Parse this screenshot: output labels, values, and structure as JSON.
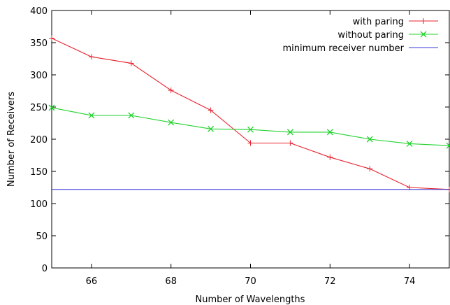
{
  "chart_data": {
    "type": "line",
    "title": "",
    "xlabel": "Number of Wavelengths",
    "ylabel": "Number of Receivers",
    "xlim": [
      65,
      75
    ],
    "ylim": [
      0,
      400
    ],
    "xticks": [
      66,
      68,
      70,
      72,
      74
    ],
    "yticks": [
      0,
      50,
      100,
      150,
      200,
      250,
      300,
      350,
      400
    ],
    "grid": false,
    "legend_position": "top-right",
    "series": [
      {
        "name": "with paring",
        "color": "#e8222e",
        "marker": "plus",
        "x": [
          65,
          66,
          67,
          68,
          69,
          70,
          71,
          72,
          73,
          74,
          75
        ],
        "y": [
          357,
          328,
          318,
          276,
          245,
          194,
          194,
          172,
          154,
          125,
          122
        ]
      },
      {
        "name": "without paring",
        "color": "#1fd22b",
        "marker": "cross",
        "x": [
          65,
          66,
          67,
          68,
          69,
          70,
          71,
          72,
          73,
          74,
          75
        ],
        "y": [
          249,
          237,
          237,
          226,
          216,
          215,
          211,
          211,
          200,
          193,
          190
        ]
      },
      {
        "name": "minimum receiver number",
        "color": "#3a3ad6",
        "marker": "none",
        "x": [
          65,
          75
        ],
        "y": [
          122,
          122
        ]
      }
    ]
  }
}
